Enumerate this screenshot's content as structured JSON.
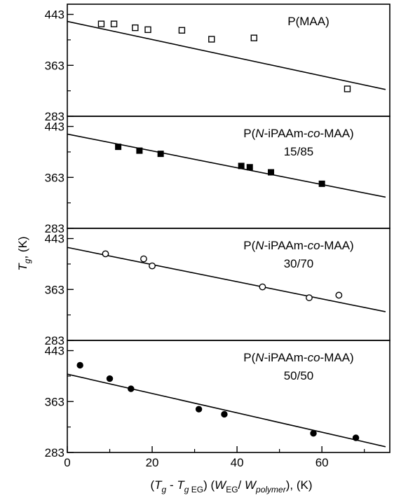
{
  "chart_data": [
    {
      "type": "scatter",
      "title": "P(MAA)",
      "subtitle": "",
      "xlabel": "(T_g - T_g EG) (W_EG / W_polymer), (K)",
      "ylabel": "T_g, (K)",
      "xlim": [
        0,
        76
      ],
      "ylim": [
        283,
        459
      ],
      "yticks": [
        283,
        363,
        443
      ],
      "marker": "open-square",
      "points": {
        "x": [
          8,
          11,
          16,
          19,
          27,
          34,
          44,
          66
        ],
        "y": [
          428,
          428,
          422,
          419,
          418,
          404,
          406,
          326
        ]
      },
      "fit_line": {
        "x": [
          0,
          75
        ],
        "y": [
          432,
          325
        ]
      }
    },
    {
      "type": "scatter",
      "title": "P(N-iPAAm-co-MAA)",
      "subtitle": "15/85",
      "xlabel": "",
      "ylabel": "T_g, (K)",
      "xlim": [
        0,
        76
      ],
      "ylim": [
        283,
        459
      ],
      "yticks": [
        283,
        363,
        443
      ],
      "marker": "filled-square",
      "points": {
        "x": [
          12,
          17,
          22,
          41,
          43,
          48,
          60
        ],
        "y": [
          411,
          405,
          400,
          381,
          379,
          371,
          353
        ]
      },
      "fit_line": {
        "x": [
          0,
          75
        ],
        "y": [
          431,
          332
        ]
      }
    },
    {
      "type": "scatter",
      "title": "P(N-iPAAm-co-MAA)",
      "subtitle": "30/70",
      "xlabel": "",
      "ylabel": "T_g, (K)",
      "xlim": [
        0,
        76
      ],
      "ylim": [
        283,
        459
      ],
      "yticks": [
        283,
        363,
        443
      ],
      "marker": "open-circle",
      "points": {
        "x": [
          9,
          18,
          20,
          46,
          57,
          64
        ],
        "y": [
          419,
          411,
          400,
          367,
          350,
          354
        ]
      },
      "fit_line": {
        "x": [
          0,
          75
        ],
        "y": [
          429,
          328
        ]
      }
    },
    {
      "type": "scatter",
      "title": "P(N-iPAAm-co-MAA)",
      "subtitle": "50/50",
      "xlabel": "",
      "ylabel": "T_g, (K)",
      "xlim": [
        0,
        76
      ],
      "ylim": [
        283,
        459
      ],
      "yticks": [
        283,
        363,
        443
      ],
      "xticks": [
        0,
        20,
        40,
        60
      ],
      "marker": "filled-circle",
      "points": {
        "x": [
          3,
          10,
          15,
          31,
          37,
          58,
          68
        ],
        "y": [
          420,
          399,
          383,
          351,
          343,
          313,
          306
        ]
      },
      "fit_line": {
        "x": [
          0,
          75
        ],
        "y": [
          406,
          292
        ]
      }
    }
  ]
}
